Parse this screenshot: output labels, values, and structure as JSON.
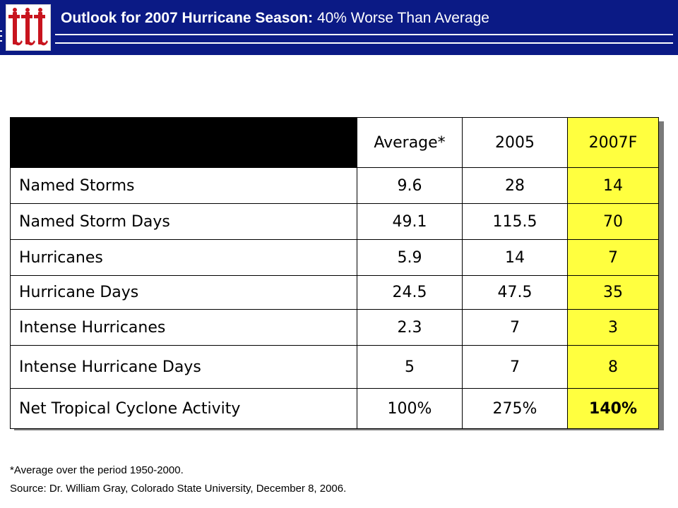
{
  "header": {
    "title_bold": "Outlook for 2007 Hurricane Season:",
    "title_rest": " 40% Worse Than Average",
    "logo_icon": "tt-logo-icon",
    "background_color": "#0b1a85"
  },
  "table": {
    "columns": [
      "",
      "Average*",
      "2005",
      "2007F"
    ],
    "rows": [
      {
        "label": "Named Storms",
        "average": "9.6",
        "y2005": "28",
        "y2007f": "14"
      },
      {
        "label": "Named Storm Days",
        "average": "49.1",
        "y2005": "115.5",
        "y2007f": "70"
      },
      {
        "label": "Hurricanes",
        "average": "5.9",
        "y2005": "14",
        "y2007f": "7"
      },
      {
        "label": "Hurricane Days",
        "average": "24.5",
        "y2005": "47.5",
        "y2007f": "35"
      },
      {
        "label": "Intense Hurricanes",
        "average": "2.3",
        "y2005": "7",
        "y2007f": "3"
      },
      {
        "label": "Intense Hurricane Days",
        "average": "5",
        "y2005": "7",
        "y2007f": "8"
      },
      {
        "label": "Net Tropical Cyclone Activity",
        "average": "100%",
        "y2005": "275%",
        "y2007f": "140%"
      }
    ],
    "highlight_color": "#ffff3f"
  },
  "footnotes": {
    "average_note": "*Average over the period 1950-2000.",
    "source": "Source: Dr. William Gray, Colorado State University, December 8, 2006."
  }
}
